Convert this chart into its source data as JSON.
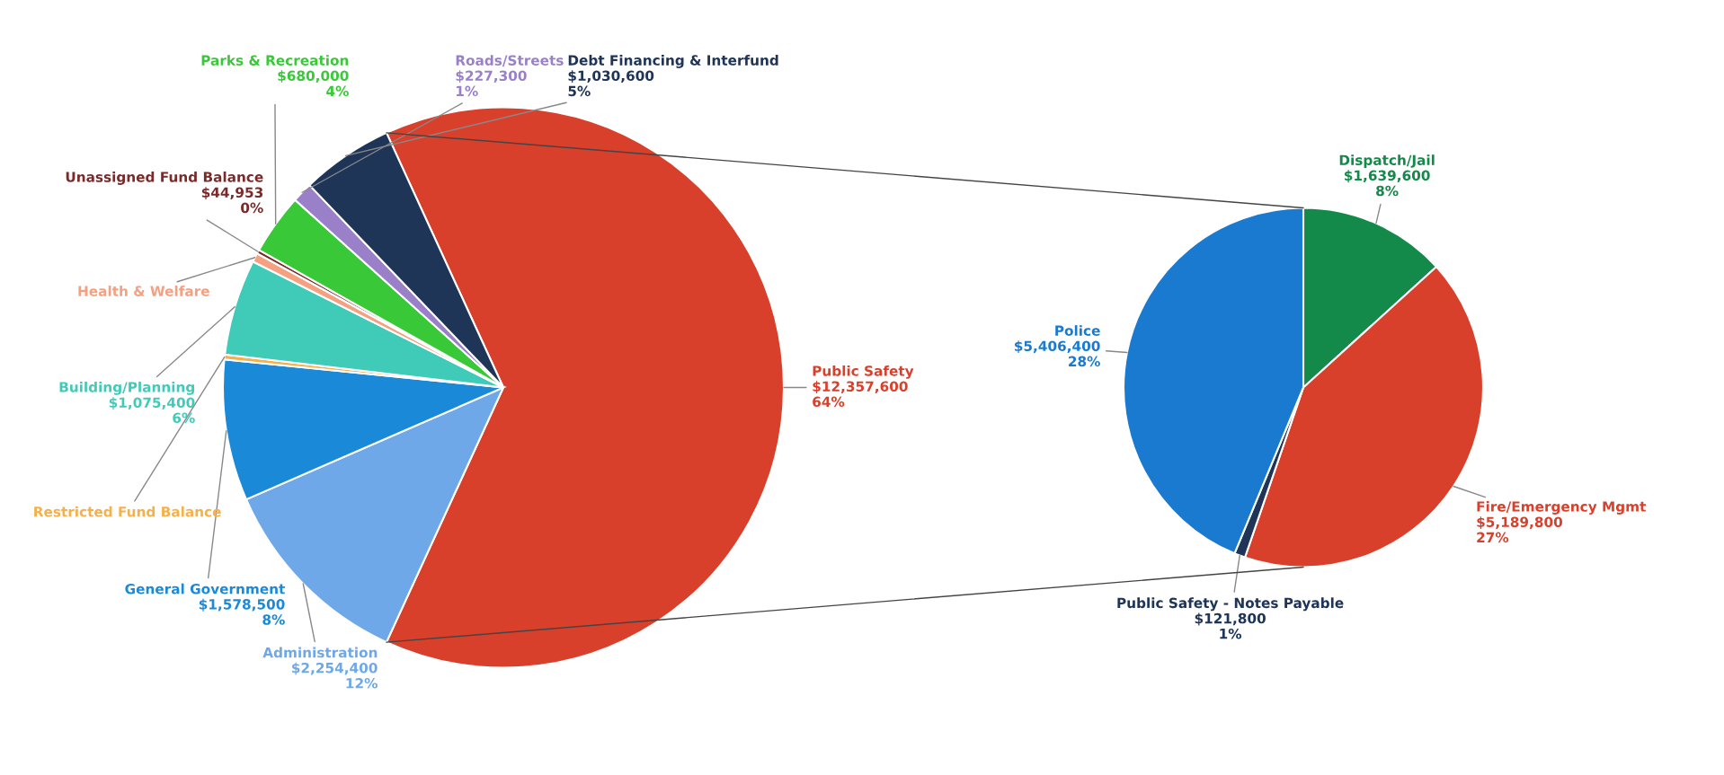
{
  "chart_data": [
    {
      "type": "pie",
      "categories": [
        "Public Safety",
        "Administration",
        "General Government",
        "Restricted Fund Balance",
        "Building/Planning",
        "Health & Welfare",
        "Unassigned Fund Balance",
        "Parks & Recreation",
        "Roads/Streets",
        "Debt Financing & Interfund"
      ],
      "values": [
        12357600,
        2254400,
        1578500,
        55000,
        1075400,
        100000,
        44953,
        680000,
        227300,
        1030600
      ],
      "colors": [
        "#d9402b",
        "#6fa8e8",
        "#1a8ad8",
        "#f5b04a",
        "#40cbb8",
        "#f5a080",
        "#7b2a2a",
        "#38c838",
        "#9a80c8",
        "#1f3558"
      ],
      "value_labels": [
        "$12,357,600\n64%",
        "$2,254,400\n12%",
        "$1,578,500\n8%",
        null,
        "$1,075,400\n6%",
        null,
        "$44,953\n0%",
        "$680,000\n4%",
        "$227,300\n1%",
        "$1,030,600\n5%"
      ]
    },
    {
      "type": "pie",
      "categories": [
        "Dispatch/Jail",
        "Fire/Emergency Mgmt",
        "Public Safety - Notes Payable",
        "Police"
      ],
      "values": [
        1639600,
        5189800,
        121800,
        5406400
      ],
      "colors": [
        "#13894a",
        "#d9402b",
        "#1f3558",
        "#1a7ad0"
      ],
      "value_labels": [
        "$1,639,600\n8%",
        "$5,189,800\n27%",
        "$121,800\n1%",
        "$5,406,400\n28%"
      ]
    }
  ]
}
